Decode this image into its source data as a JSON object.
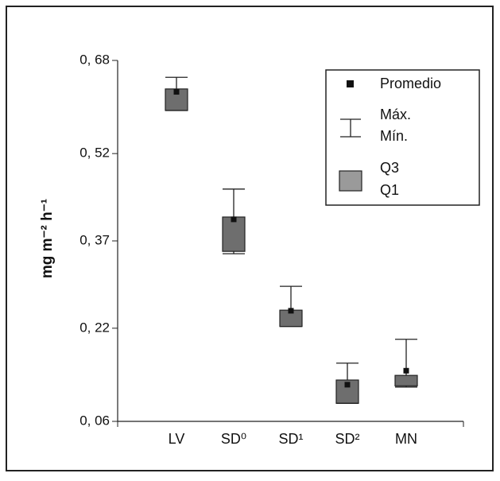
{
  "chart_data": {
    "type": "box",
    "y_label": "mg m⁻² h⁻¹",
    "categories": [
      "LV",
      "SD⁰",
      "SD¹",
      "SD²",
      "MN"
    ],
    "stats": {
      "mean": [
        0.626,
        0.407,
        0.25,
        0.123,
        0.147
      ],
      "max": [
        0.651,
        0.459,
        0.292,
        0.16,
        0.201
      ],
      "min": [
        0.594,
        0.348,
        0.223,
        0.091,
        0.119
      ],
      "q3": [
        0.631,
        0.411,
        0.251,
        0.131,
        0.139
      ],
      "q1": [
        0.594,
        0.352,
        0.223,
        0.091,
        0.121
      ]
    },
    "legend": {
      "mean": "Promedio",
      "max": "Máx.",
      "min": "Mín.",
      "q3": "Q3",
      "q1": "Q1"
    },
    "box_color": "#6e6e6e",
    "legend_box_color": "#9a9a9a",
    "ylim": [
      0.06,
      0.68
    ],
    "yticks": [
      {
        "value": 0.06,
        "label": "0, 06"
      },
      {
        "value": 0.22,
        "label": "0, 22"
      },
      {
        "value": 0.37,
        "label": "0, 37"
      },
      {
        "value": 0.52,
        "label": "0, 52"
      },
      {
        "value": 0.68,
        "label": "0, 68"
      }
    ]
  }
}
